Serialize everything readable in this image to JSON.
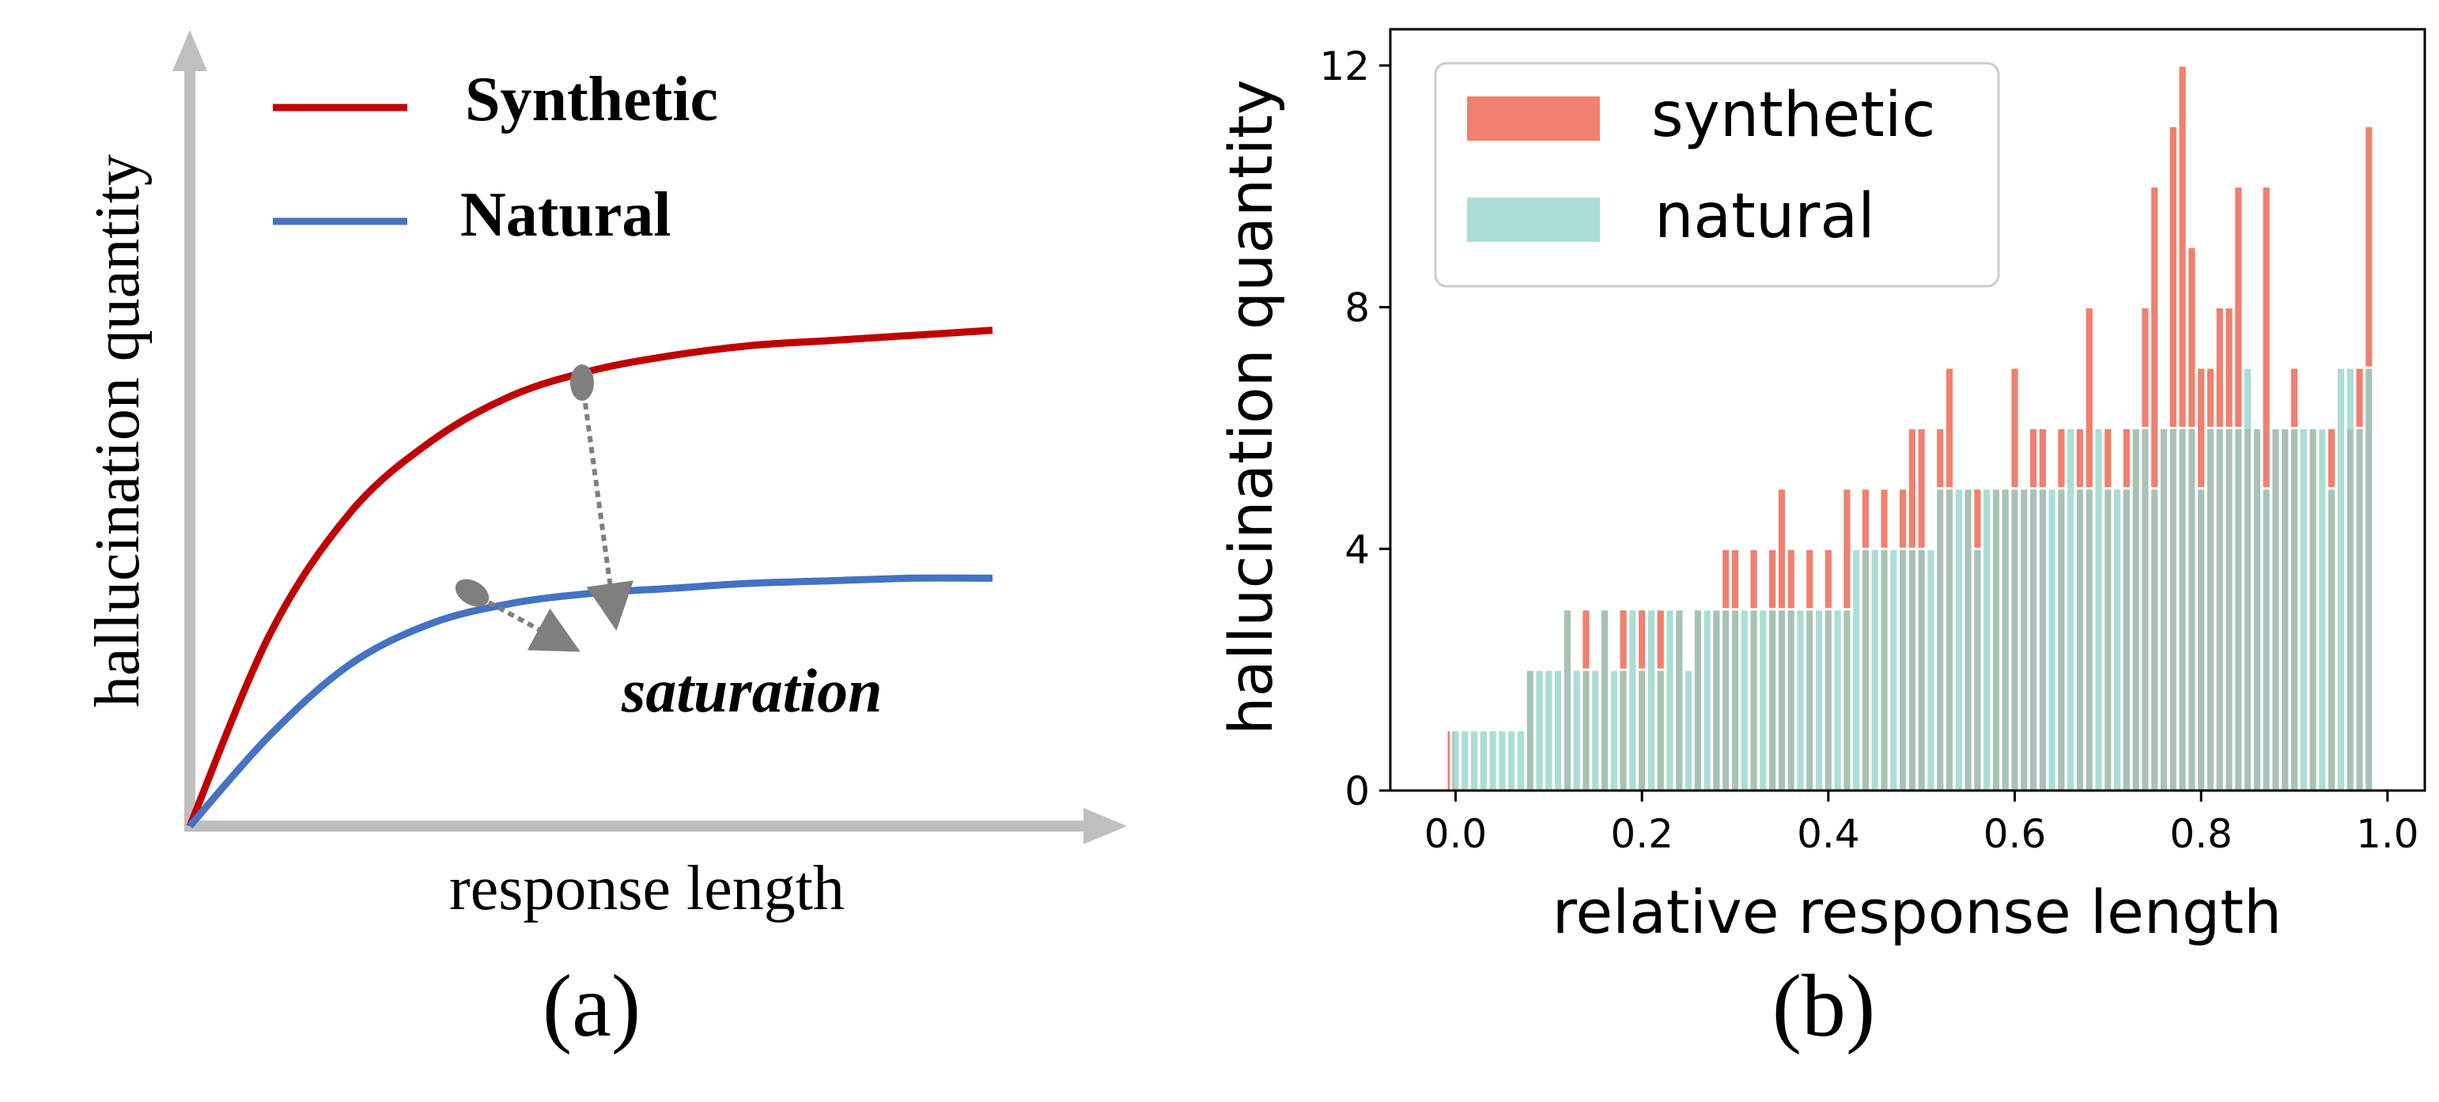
{
  "panel_a": {
    "caption": "(a)",
    "xlabel": "response length",
    "ylabel": "hallucination quantity",
    "legend": [
      {
        "label": "Synthetic",
        "color": "#c00000"
      },
      {
        "label": "Natural",
        "color": "#4472c4"
      }
    ],
    "annotation": "saturation",
    "axis_color": "#bfbfbf",
    "marker_color": "#7f7f7f"
  },
  "panel_b": {
    "caption": "(b)"
  },
  "chart_data": [
    {
      "type": "line",
      "title": "",
      "xlabel": "response length",
      "ylabel": "hallucination quantity",
      "conceptual": true,
      "x": [
        0,
        0.1,
        0.2,
        0.3,
        0.4,
        0.5,
        0.6,
        0.7,
        0.8,
        0.9,
        1.0
      ],
      "series": [
        {
          "name": "Synthetic",
          "color": "#c00000",
          "values": [
            0,
            0.38,
            0.62,
            0.76,
            0.85,
            0.9,
            0.93,
            0.95,
            0.96,
            0.97,
            0.98
          ]
        },
        {
          "name": "Natural",
          "color": "#4472c4",
          "values": [
            0,
            0.18,
            0.32,
            0.4,
            0.44,
            0.46,
            0.47,
            0.48,
            0.485,
            0.49,
            0.49
          ]
        }
      ],
      "annotations": [
        "saturation"
      ]
    },
    {
      "type": "bar",
      "title": "",
      "xlabel": "relative response length",
      "ylabel": "hallucination quantity",
      "xlim": [
        -0.07,
        1.04
      ],
      "ylim": [
        0,
        12.6
      ],
      "xticks": [
        0.0,
        0.2,
        0.4,
        0.6,
        0.8,
        1.0
      ],
      "xtick_labels": [
        "0.0",
        "0.2",
        "0.4",
        "0.6",
        "0.8",
        "1.0"
      ],
      "yticks": [
        0,
        4,
        8,
        12
      ],
      "ytick_labels": [
        "0",
        "4",
        "8",
        "12"
      ],
      "legend_position": "top-left",
      "series": [
        {
          "name": "synthetic",
          "color": "#f08070",
          "x": [
            -0.005,
            0.08,
            0.12,
            0.14,
            0.16,
            0.18,
            0.2,
            0.22,
            0.24,
            0.26,
            0.28,
            0.29,
            0.3,
            0.32,
            0.34,
            0.35,
            0.36,
            0.38,
            0.4,
            0.42,
            0.44,
            0.46,
            0.48,
            0.49,
            0.5,
            0.52,
            0.53,
            0.55,
            0.56,
            0.58,
            0.59,
            0.6,
            0.61,
            0.62,
            0.63,
            0.65,
            0.67,
            0.68,
            0.7,
            0.72,
            0.73,
            0.74,
            0.75,
            0.76,
            0.77,
            0.78,
            0.79,
            0.8,
            0.81,
            0.82,
            0.83,
            0.84,
            0.85,
            0.86,
            0.87,
            0.88,
            0.89,
            0.9,
            0.92,
            0.94,
            0.96,
            0.97,
            0.98
          ],
          "values": [
            1,
            2,
            3,
            3,
            3,
            3,
            3,
            3,
            3,
            3,
            3,
            4,
            4,
            4,
            4,
            5,
            4,
            4,
            4,
            5,
            5,
            5,
            5,
            6,
            6,
            6,
            7,
            5,
            5,
            5,
            5,
            7,
            5,
            6,
            6,
            6,
            6,
            8,
            6,
            6,
            6,
            8,
            10,
            6,
            11,
            12,
            9,
            7,
            7,
            8,
            8,
            10,
            6,
            6,
            10,
            6,
            6,
            7,
            6,
            6,
            6,
            7,
            11
          ]
        },
        {
          "name": "natural",
          "color": "#93d5c8",
          "x": [
            0.0,
            0.01,
            0.02,
            0.03,
            0.04,
            0.05,
            0.06,
            0.07,
            0.08,
            0.09,
            0.1,
            0.11,
            0.12,
            0.13,
            0.14,
            0.15,
            0.16,
            0.17,
            0.18,
            0.19,
            0.2,
            0.21,
            0.22,
            0.23,
            0.24,
            0.25,
            0.26,
            0.27,
            0.28,
            0.29,
            0.3,
            0.31,
            0.32,
            0.33,
            0.34,
            0.35,
            0.36,
            0.37,
            0.38,
            0.39,
            0.4,
            0.41,
            0.42,
            0.43,
            0.44,
            0.45,
            0.46,
            0.47,
            0.48,
            0.49,
            0.5,
            0.51,
            0.52,
            0.53,
            0.54,
            0.55,
            0.56,
            0.57,
            0.58,
            0.59,
            0.6,
            0.61,
            0.62,
            0.63,
            0.64,
            0.65,
            0.66,
            0.67,
            0.68,
            0.69,
            0.7,
            0.71,
            0.72,
            0.73,
            0.74,
            0.75,
            0.76,
            0.77,
            0.78,
            0.79,
            0.8,
            0.81,
            0.82,
            0.83,
            0.84,
            0.85,
            0.86,
            0.87,
            0.88,
            0.89,
            0.9,
            0.91,
            0.92,
            0.93,
            0.94,
            0.95,
            0.96,
            0.97,
            0.98
          ],
          "values": [
            1,
            1,
            1,
            1,
            1,
            1,
            1,
            1,
            2,
            2,
            2,
            2,
            3,
            2,
            2,
            2,
            3,
            2,
            2,
            3,
            2,
            3,
            2,
            3,
            3,
            2,
            3,
            3,
            3,
            3,
            3,
            3,
            3,
            3,
            3,
            3,
            3,
            3,
            3,
            3,
            3,
            3,
            3,
            4,
            4,
            4,
            4,
            4,
            4,
            4,
            4,
            4,
            5,
            5,
            5,
            5,
            4,
            5,
            5,
            5,
            5,
            5,
            5,
            5,
            5,
            5,
            6,
            5,
            5,
            6,
            5,
            5,
            5,
            6,
            6,
            5,
            6,
            6,
            6,
            6,
            5,
            6,
            6,
            6,
            6,
            7,
            6,
            5,
            6,
            6,
            6,
            6,
            6,
            6,
            5,
            7,
            7,
            6,
            7
          ]
        }
      ]
    }
  ]
}
